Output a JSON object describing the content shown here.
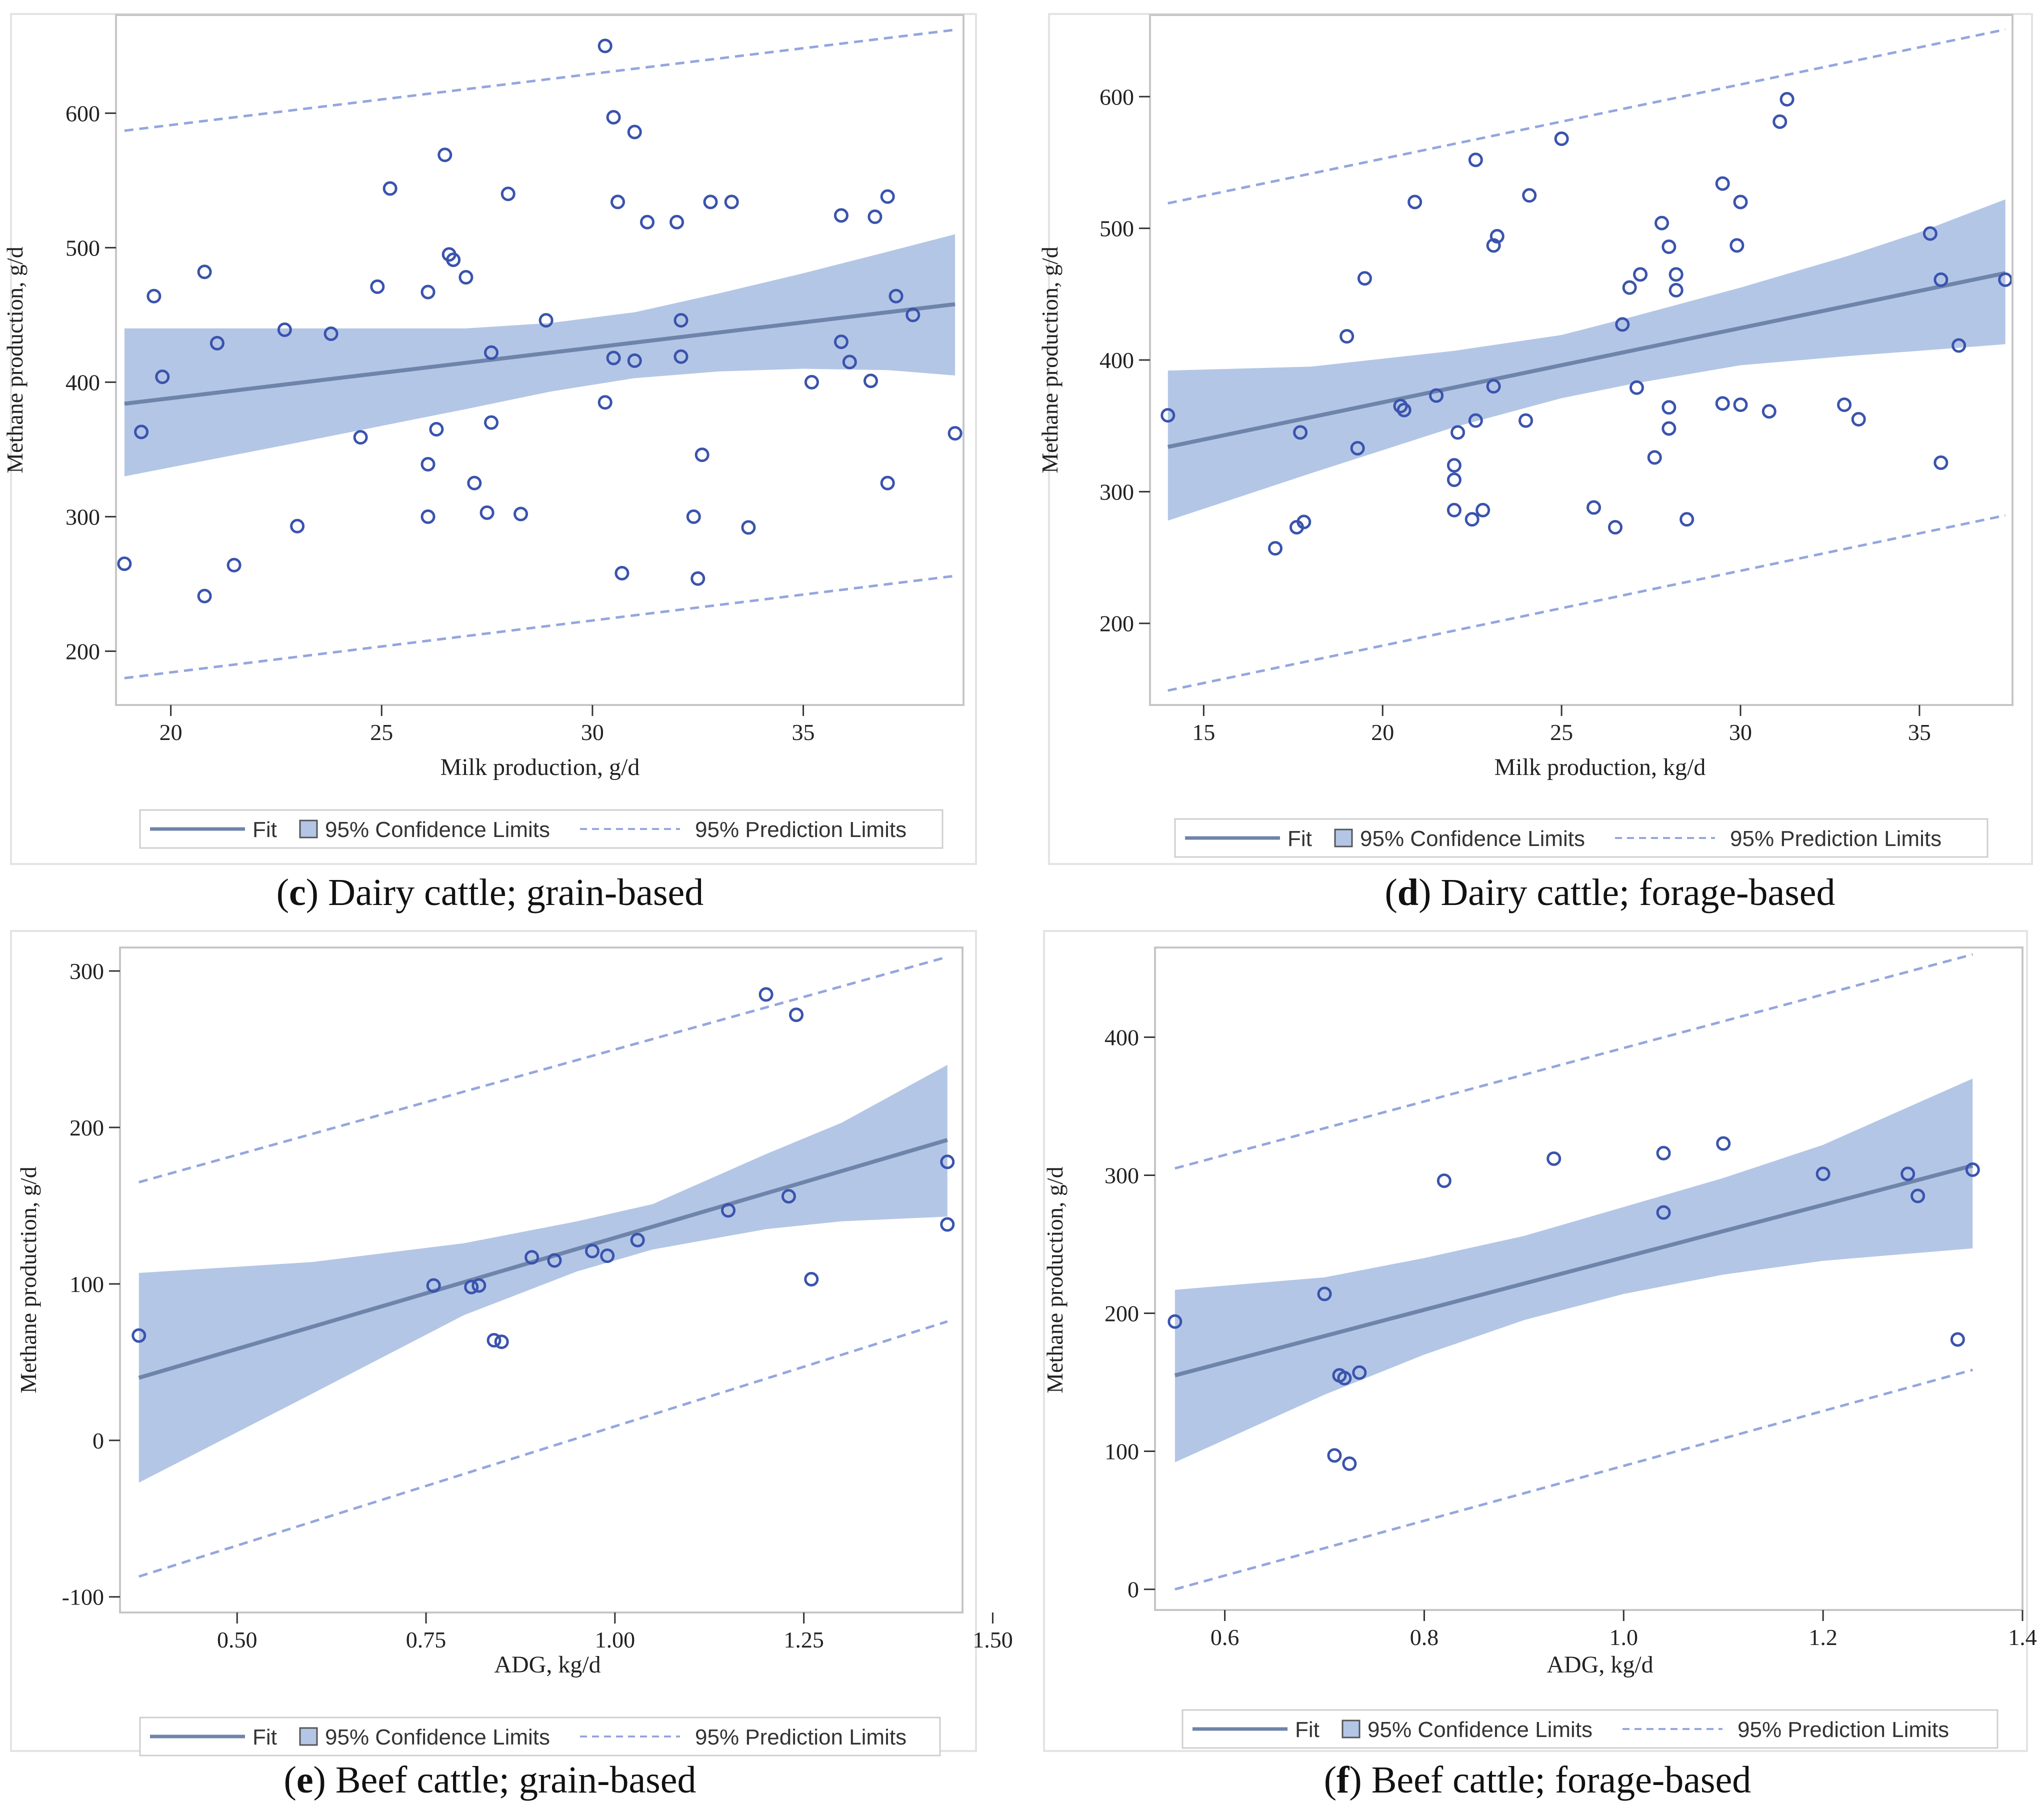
{
  "colors": {
    "band": "#b3c6e6",
    "fit": "#6f84aa",
    "points": "#3a53ad",
    "pred": "#95a6de",
    "frame": "#c6c6c6",
    "axis": "#333333"
  },
  "legend": {
    "fit": "Fit",
    "confidence": "95% Confidence Limits",
    "prediction": "95% Prediction Limits"
  },
  "chart_data": [
    {
      "id": "c",
      "type": "scatter",
      "caption_letter": "c",
      "caption_text": " Dairy cattle; grain-based",
      "xlabel": "Milk production, g/d",
      "ylabel": "Methane production, g/d",
      "xlim": [
        18.7,
        38.8
      ],
      "ylim": [
        160,
        673
      ],
      "xticks": [
        20,
        25,
        30,
        35
      ],
      "xtick_labels": [
        "20",
        "25",
        "30",
        "35"
      ],
      "yticks": [
        200,
        300,
        400,
        500,
        600
      ],
      "ytick_labels": [
        "200",
        "300",
        "400",
        "500",
        "600"
      ],
      "fit": [
        [
          18.9,
          384
        ],
        [
          38.6,
          458
        ]
      ],
      "confidence": {
        "x": [
          18.9,
          23,
          27,
          29,
          31,
          33,
          35,
          37,
          38.6
        ],
        "lower": [
          330,
          355,
          380,
          393,
          403,
          408,
          410,
          409,
          405
        ],
        "upper": [
          440,
          440,
          440,
          444,
          452,
          466,
          481,
          497,
          510
        ]
      },
      "prediction": {
        "lower": [
          [
            18.9,
            180
          ],
          [
            38.6,
            256
          ]
        ],
        "upper": [
          [
            18.9,
            587
          ],
          [
            38.6,
            662
          ]
        ]
      },
      "points": [
        [
          18.9,
          265
        ],
        [
          19.3,
          363
        ],
        [
          19.6,
          464
        ],
        [
          19.8,
          404
        ],
        [
          20.8,
          482
        ],
        [
          20.8,
          241
        ],
        [
          21.1,
          429
        ],
        [
          21.5,
          264
        ],
        [
          22.7,
          439
        ],
        [
          23.0,
          293
        ],
        [
          23.8,
          436
        ],
        [
          24.5,
          359
        ],
        [
          24.9,
          471
        ],
        [
          25.2,
          544
        ],
        [
          26.1,
          467
        ],
        [
          26.1,
          339
        ],
        [
          26.1,
          300
        ],
        [
          26.3,
          365
        ],
        [
          26.5,
          569
        ],
        [
          26.6,
          495
        ],
        [
          26.7,
          491
        ],
        [
          27.0,
          478
        ],
        [
          27.2,
          325
        ],
        [
          27.5,
          303
        ],
        [
          27.6,
          422
        ],
        [
          27.6,
          370
        ],
        [
          28.0,
          540
        ],
        [
          28.3,
          302
        ],
        [
          28.9,
          446
        ],
        [
          30.3,
          650
        ],
        [
          30.3,
          385
        ],
        [
          30.5,
          597
        ],
        [
          30.5,
          418
        ],
        [
          30.6,
          534
        ],
        [
          30.7,
          258
        ],
        [
          31.0,
          586
        ],
        [
          31.0,
          416
        ],
        [
          31.3,
          519
        ],
        [
          32.0,
          519
        ],
        [
          32.1,
          446
        ],
        [
          32.1,
          419
        ],
        [
          32.4,
          300
        ],
        [
          32.5,
          254
        ],
        [
          32.6,
          346
        ],
        [
          32.8,
          534
        ],
        [
          33.3,
          534
        ],
        [
          33.7,
          292
        ],
        [
          35.2,
          400
        ],
        [
          35.9,
          524
        ],
        [
          35.9,
          430
        ],
        [
          36.1,
          415
        ],
        [
          36.6,
          401
        ],
        [
          36.7,
          523
        ],
        [
          37.0,
          538
        ],
        [
          37.0,
          325
        ],
        [
          37.2,
          464
        ],
        [
          37.6,
          450
        ],
        [
          38.6,
          362
        ]
      ]
    },
    {
      "id": "d",
      "type": "scatter",
      "caption_letter": "d",
      "caption_text": " Dairy cattle; forage-based",
      "xlabel": "Milk production, kg/d",
      "ylabel": "Methane production, g/d",
      "xlim": [
        13.5,
        37.6
      ],
      "ylim": [
        138,
        662
      ],
      "xticks": [
        15,
        20,
        25,
        30,
        35
      ],
      "xtick_labels": [
        "15",
        "20",
        "25",
        "30",
        "35"
      ],
      "yticks": [
        200,
        300,
        400,
        500,
        600
      ],
      "ytick_labels": [
        "200",
        "300",
        "400",
        "500",
        "600"
      ],
      "fit": [
        [
          14.0,
          334
        ],
        [
          37.4,
          466
        ]
      ],
      "confidence": {
        "x": [
          14.0,
          18,
          22,
          25,
          27,
          30,
          33,
          35,
          37.4
        ],
        "lower": [
          278,
          314,
          349,
          371,
          382,
          396,
          403,
          407,
          412
        ],
        "upper": [
          392,
          395,
          407,
          419,
          433,
          455,
          479,
          497,
          522
        ]
      },
      "prediction": {
        "lower": [
          [
            14.0,
            149
          ],
          [
            37.4,
            282
          ]
        ],
        "upper": [
          [
            14.0,
            519
          ],
          [
            37.4,
            651
          ]
        ]
      },
      "points": [
        [
          14.0,
          358
        ],
        [
          17.0,
          257
        ],
        [
          17.6,
          273
        ],
        [
          17.7,
          345
        ],
        [
          17.8,
          277
        ],
        [
          19.0,
          418
        ],
        [
          19.3,
          333
        ],
        [
          19.5,
          462
        ],
        [
          20.5,
          365
        ],
        [
          20.6,
          362
        ],
        [
          20.9,
          520
        ],
        [
          21.5,
          373
        ],
        [
          22.0,
          320
        ],
        [
          22.0,
          309
        ],
        [
          22.0,
          286
        ],
        [
          22.1,
          345
        ],
        [
          22.5,
          279
        ],
        [
          22.6,
          552
        ],
        [
          22.6,
          354
        ],
        [
          22.8,
          286
        ],
        [
          23.1,
          487
        ],
        [
          23.1,
          380
        ],
        [
          23.2,
          494
        ],
        [
          24.0,
          354
        ],
        [
          24.1,
          525
        ],
        [
          25.0,
          568
        ],
        [
          25.9,
          288
        ],
        [
          26.5,
          273
        ],
        [
          26.7,
          427
        ],
        [
          26.9,
          455
        ],
        [
          27.1,
          379
        ],
        [
          27.2,
          465
        ],
        [
          27.6,
          326
        ],
        [
          27.8,
          504
        ],
        [
          28.0,
          486
        ],
        [
          28.0,
          364
        ],
        [
          28.0,
          348
        ],
        [
          28.2,
          465
        ],
        [
          28.2,
          453
        ],
        [
          28.5,
          279
        ],
        [
          29.5,
          534
        ],
        [
          29.5,
          367
        ],
        [
          29.9,
          487
        ],
        [
          30.0,
          520
        ],
        [
          30.0,
          366
        ],
        [
          30.8,
          361
        ],
        [
          31.1,
          581
        ],
        [
          31.3,
          598
        ],
        [
          32.9,
          366
        ],
        [
          33.3,
          355
        ],
        [
          35.3,
          496
        ],
        [
          35.6,
          461
        ],
        [
          35.6,
          322
        ],
        [
          36.1,
          411
        ],
        [
          37.4,
          461
        ]
      ]
    },
    {
      "id": "e",
      "type": "scatter",
      "caption_letter": "e",
      "caption_text": " Beef cattle; grain-based",
      "xlabel": "ADG, kg/d",
      "ylabel": "Methane production, g/d",
      "xlim": [
        0.345,
        1.46
      ],
      "ylim": [
        -110,
        315
      ],
      "xticks": [
        0.5,
        0.75,
        1.0,
        1.25,
        1.5
      ],
      "xtick_labels": [
        "0.50",
        "0.75",
        "1.00",
        "1.25",
        "1.50"
      ],
      "yticks": [
        -100,
        0,
        100,
        200,
        300
      ],
      "ytick_labels": [
        "-100",
        "0",
        "100",
        "200",
        "300"
      ],
      "fit": [
        [
          0.37,
          40
        ],
        [
          1.44,
          192
        ]
      ],
      "confidence": {
        "x": [
          0.37,
          0.6,
          0.8,
          0.95,
          1.05,
          1.2,
          1.3,
          1.44
        ],
        "lower": [
          -27,
          30,
          80,
          108,
          122,
          135,
          140,
          143
        ],
        "upper": [
          107,
          114,
          126,
          140,
          151,
          183,
          203,
          240
        ]
      },
      "prediction": {
        "lower": [
          [
            0.37,
            -87
          ],
          [
            1.44,
            76
          ]
        ],
        "upper": [
          [
            0.37,
            165
          ],
          [
            1.44,
            309
          ]
        ]
      },
      "points": [
        [
          0.37,
          67
        ],
        [
          0.76,
          99
        ],
        [
          0.81,
          98
        ],
        [
          0.82,
          99
        ],
        [
          0.84,
          64
        ],
        [
          0.85,
          63
        ],
        [
          0.89,
          117
        ],
        [
          0.92,
          115
        ],
        [
          0.97,
          121
        ],
        [
          0.99,
          118
        ],
        [
          1.03,
          128
        ],
        [
          1.15,
          147
        ],
        [
          1.2,
          285
        ],
        [
          1.23,
          156
        ],
        [
          1.24,
          272
        ],
        [
          1.26,
          103
        ],
        [
          1.44,
          178
        ],
        [
          1.44,
          138
        ]
      ]
    },
    {
      "id": "f",
      "type": "scatter",
      "caption_letter": "f",
      "caption_text": " Beef cattle; forage-based",
      "xlabel": "ADG, kg/d",
      "ylabel": "Methane production, g/d",
      "xlim": [
        0.53,
        1.4
      ],
      "ylim": [
        -15,
        465
      ],
      "xticks": [
        0.6,
        0.8,
        1.0,
        1.2,
        1.4
      ],
      "xtick_labels": [
        "0.6",
        "0.8",
        "1.0",
        "1.2",
        "1.4"
      ],
      "yticks": [
        0,
        100,
        200,
        300,
        400
      ],
      "ytick_labels": [
        "0",
        "100",
        "200",
        "300",
        "400"
      ],
      "fit": [
        [
          0.55,
          155
        ],
        [
          1.35,
          307
        ]
      ],
      "confidence": {
        "x": [
          0.55,
          0.7,
          0.8,
          0.9,
          1.0,
          1.1,
          1.2,
          1.35
        ],
        "lower": [
          92,
          141,
          170,
          195,
          214,
          228,
          238,
          247
        ],
        "upper": [
          217,
          226,
          240,
          256,
          277,
          298,
          322,
          370
        ]
      },
      "prediction": {
        "lower": [
          [
            0.55,
            0
          ],
          [
            1.35,
            159
          ]
        ],
        "upper": [
          [
            0.55,
            305
          ],
          [
            1.35,
            460
          ]
        ]
      },
      "points": [
        [
          0.55,
          194
        ],
        [
          0.7,
          214
        ],
        [
          0.71,
          97
        ],
        [
          0.715,
          155
        ],
        [
          0.72,
          153
        ],
        [
          0.725,
          91
        ],
        [
          0.735,
          157
        ],
        [
          0.82,
          296
        ],
        [
          0.93,
          312
        ],
        [
          1.04,
          316
        ],
        [
          1.04,
          273
        ],
        [
          1.1,
          323
        ],
        [
          1.2,
          301
        ],
        [
          1.285,
          301
        ],
        [
          1.295,
          285
        ],
        [
          1.335,
          181
        ],
        [
          1.35,
          304
        ]
      ]
    }
  ]
}
